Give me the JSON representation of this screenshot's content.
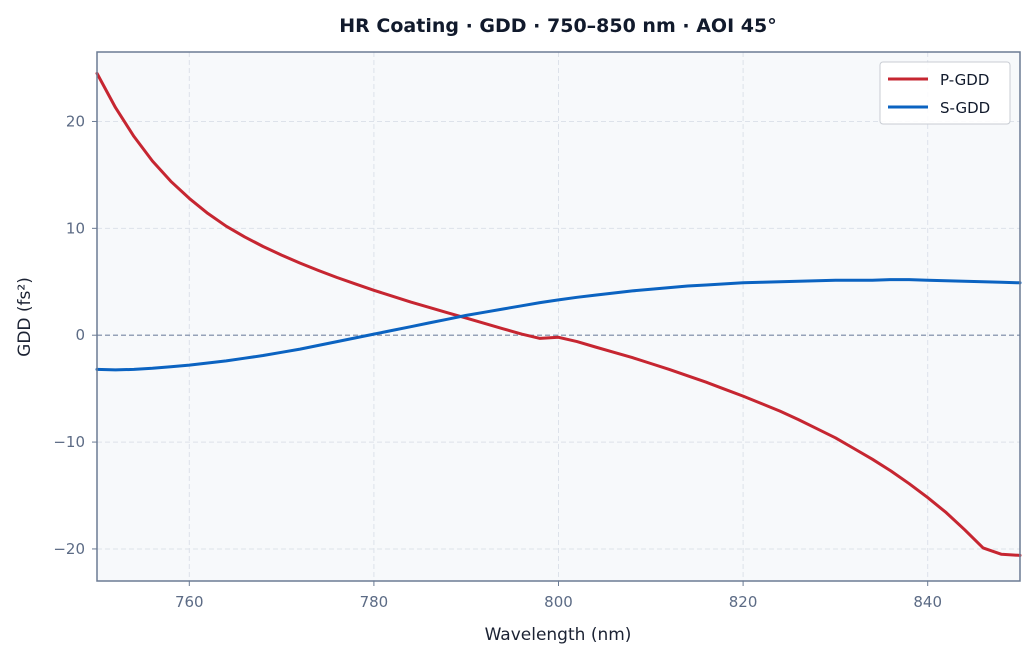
{
  "chart_data": {
    "type": "line",
    "title": "HR Coating · GDD · 750–850 nm · AOI 45°",
    "xlabel": "Wavelength (nm)",
    "ylabel": "GDD (fs²)",
    "xlim": [
      750,
      850
    ],
    "ylim": [
      -23,
      26.5
    ],
    "x_ticks": [
      760,
      780,
      800,
      820,
      840
    ],
    "x_tick_labels": [
      "760",
      "780",
      "800",
      "820",
      "840"
    ],
    "y_ticks": [
      -20,
      -10,
      0,
      10,
      20
    ],
    "y_tick_labels": [
      "−20",
      "−10",
      "0",
      "10",
      "20"
    ],
    "grid": true,
    "zero_line": true,
    "legend_position": "top-right",
    "x": [
      750,
      752,
      754,
      756,
      758,
      760,
      762,
      764,
      766,
      768,
      770,
      772,
      774,
      776,
      778,
      780,
      782,
      784,
      786,
      788,
      790,
      792,
      794,
      796,
      798,
      800,
      802,
      804,
      806,
      808,
      810,
      812,
      814,
      816,
      818,
      820,
      822,
      824,
      826,
      828,
      830,
      832,
      834,
      836,
      838,
      840,
      842,
      844,
      846,
      848,
      850
    ],
    "series": [
      {
        "name": "P-GDD",
        "color": "#c62631",
        "values": [
          24.5,
          21.3,
          18.6,
          16.3,
          14.4,
          12.8,
          11.4,
          10.2,
          9.2,
          8.3,
          7.5,
          6.75,
          6.05,
          5.4,
          4.8,
          4.2,
          3.65,
          3.1,
          2.6,
          2.1,
          1.6,
          1.1,
          0.6,
          0.1,
          -0.3,
          -0.2,
          -0.6,
          -1.1,
          -1.6,
          -2.1,
          -2.65,
          -3.2,
          -3.8,
          -4.4,
          -5.05,
          -5.7,
          -6.4,
          -7.1,
          -7.9,
          -8.75,
          -9.6,
          -10.6,
          -11.6,
          -12.7,
          -13.9,
          -15.2,
          -16.6,
          -18.2,
          -19.9,
          -20.5,
          -20.6
        ]
      },
      {
        "name": "S-GDD",
        "color": "#0b63c1",
        "values": [
          -3.2,
          -3.25,
          -3.2,
          -3.1,
          -2.95,
          -2.8,
          -2.6,
          -2.4,
          -2.15,
          -1.9,
          -1.6,
          -1.3,
          -0.95,
          -0.6,
          -0.25,
          0.1,
          0.45,
          0.8,
          1.15,
          1.5,
          1.85,
          2.15,
          2.45,
          2.75,
          3.05,
          3.3,
          3.55,
          3.75,
          3.95,
          4.15,
          4.3,
          4.45,
          4.6,
          4.7,
          4.8,
          4.9,
          4.95,
          5.0,
          5.05,
          5.1,
          5.15,
          5.15,
          5.15,
          5.2,
          5.2,
          5.15,
          5.1,
          5.05,
          5.0,
          4.95,
          4.9
        ]
      }
    ]
  }
}
